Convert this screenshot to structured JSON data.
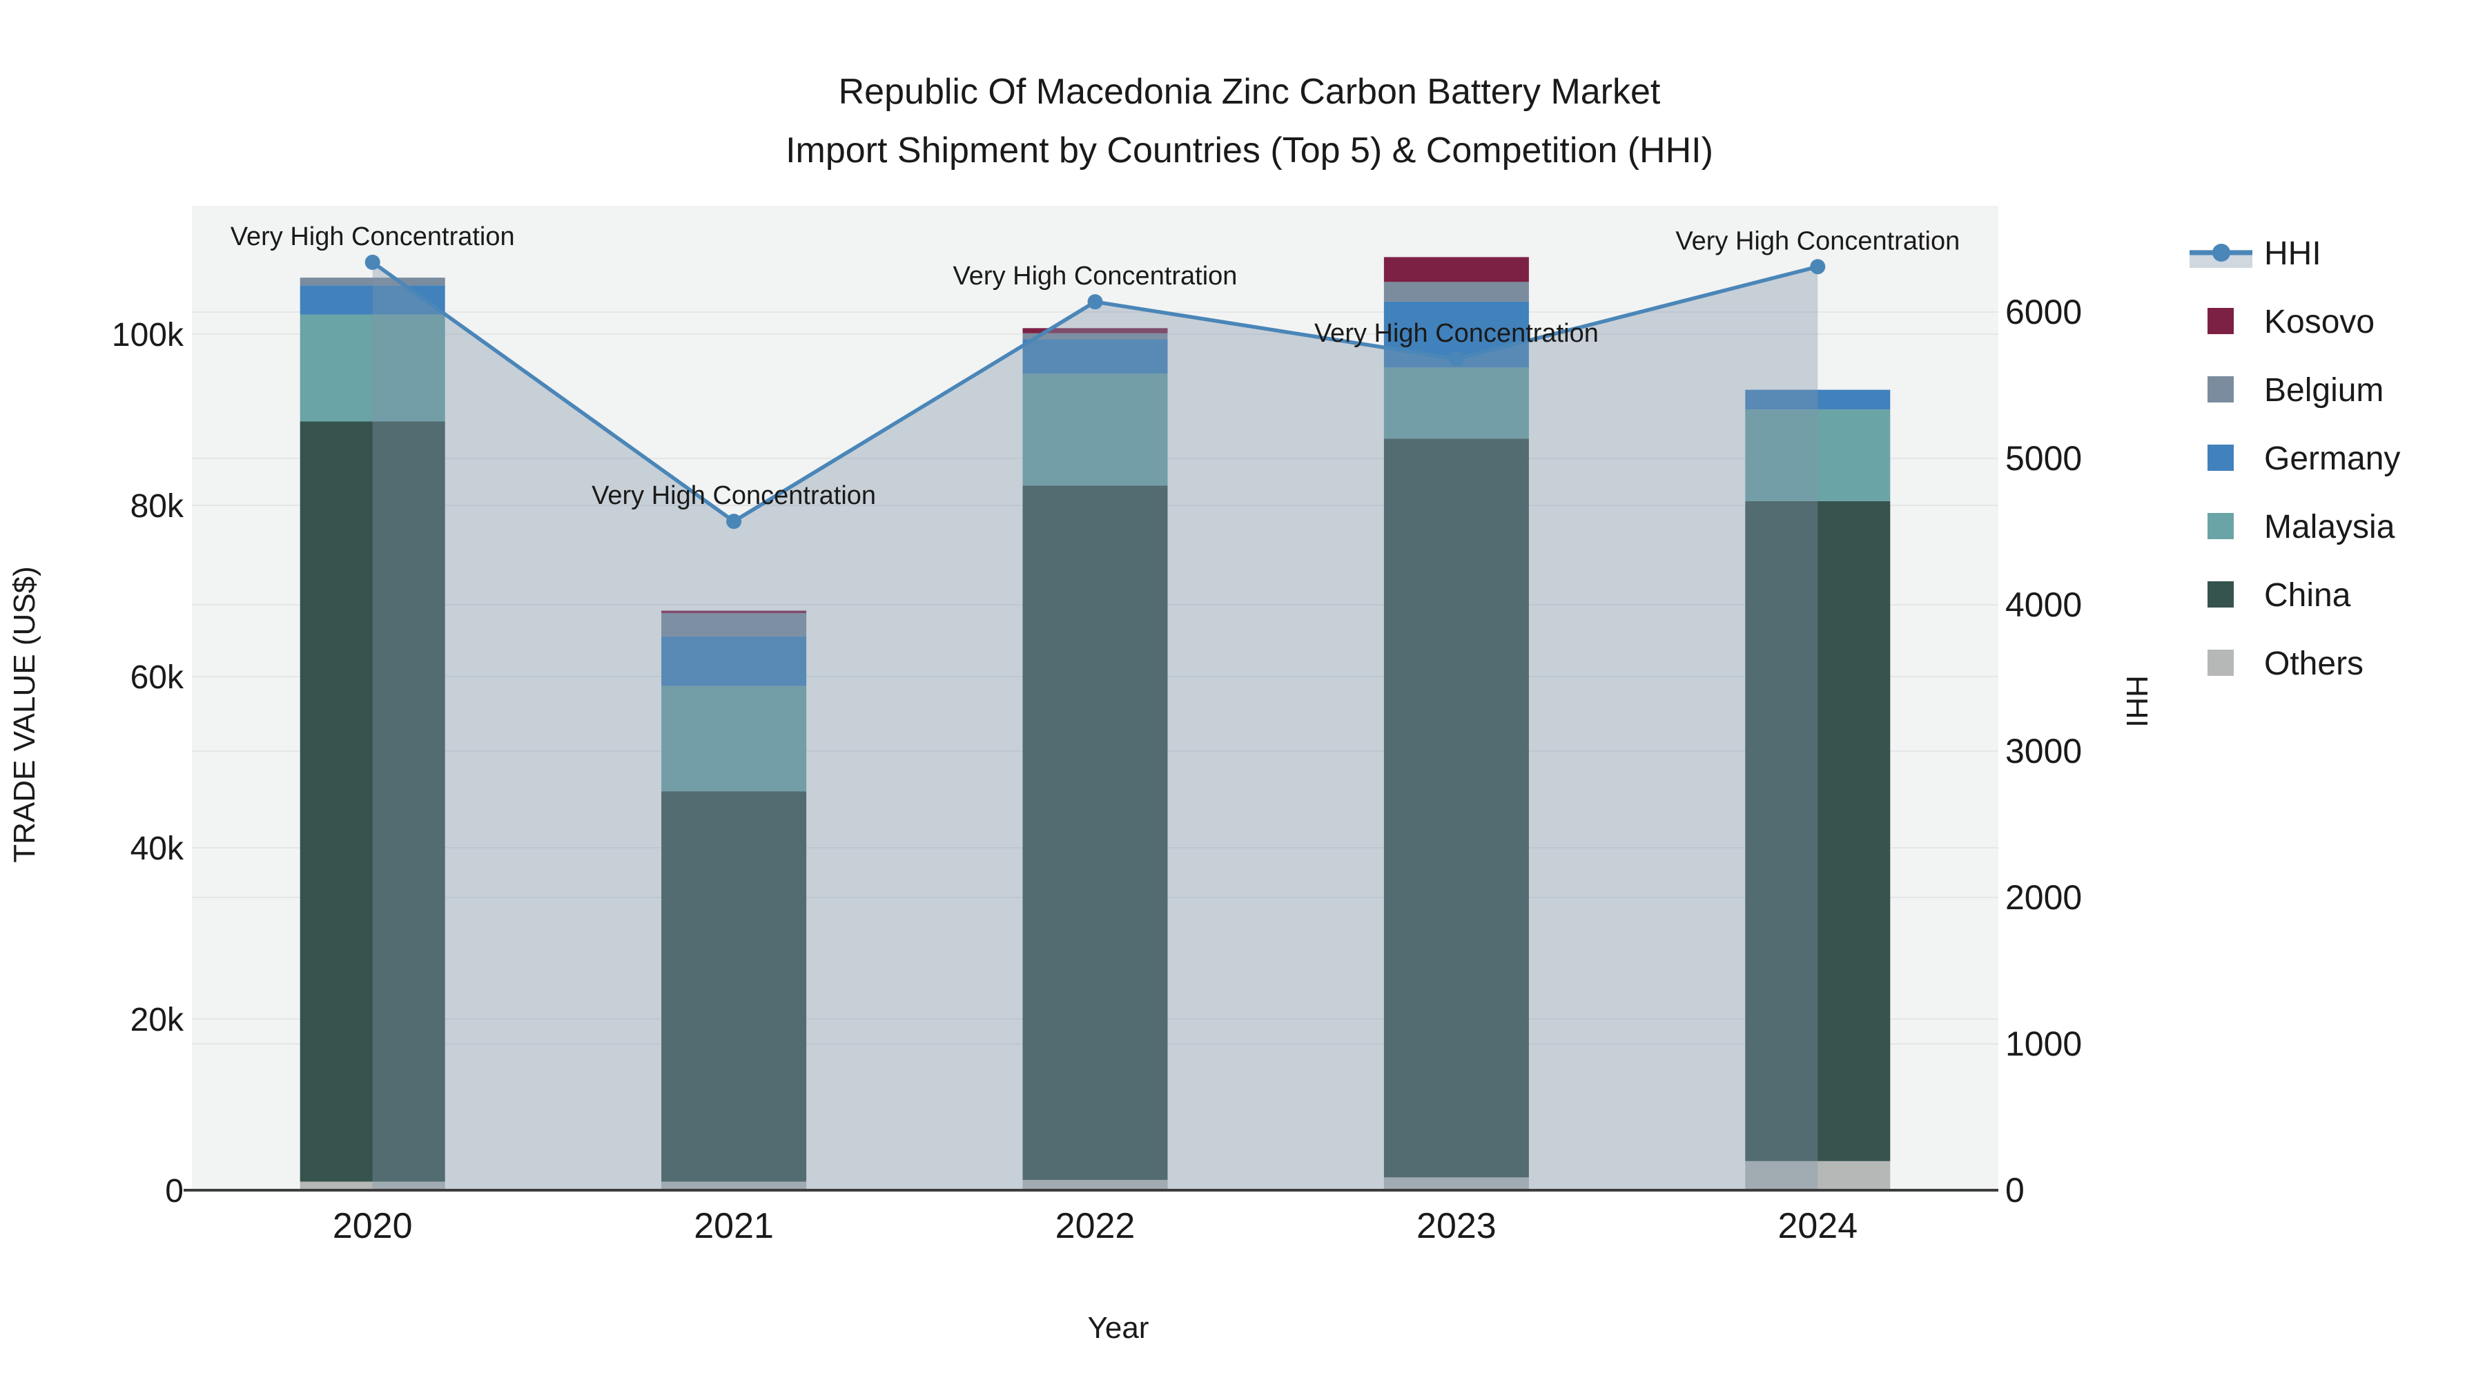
{
  "title": {
    "line1": "Republic Of Macedonia Zinc Carbon Battery Market",
    "line2": "Import Shipment by Countries (Top 5) & Competition (HHI)"
  },
  "axes": {
    "y_left": {
      "title": "TRADE VALUE (US$)",
      "ticks": [
        "0",
        "20k",
        "40k",
        "60k",
        "80k",
        "100k"
      ],
      "tick_values": [
        0,
        20000,
        40000,
        60000,
        80000,
        100000
      ],
      "max": 115000
    },
    "y_right": {
      "title": "HHI",
      "ticks": [
        "0",
        "1000",
        "2000",
        "3000",
        "4000",
        "5000",
        "6000"
      ],
      "tick_values": [
        0,
        1000,
        2000,
        3000,
        4000,
        5000,
        6000
      ],
      "max": 6730
    },
    "x": {
      "title": "Year"
    }
  },
  "annotations": {
    "label": "Very High Concentration",
    "applies_to": [
      "2020",
      "2021",
      "2022",
      "2023",
      "2024"
    ]
  },
  "legend": [
    {
      "id": "hhi",
      "label": "HHI",
      "color": "#4a86b8",
      "swatch": "line"
    },
    {
      "id": "kosovo",
      "label": "Kosovo",
      "color": "#7c2144",
      "swatch": "square"
    },
    {
      "id": "belgium",
      "label": "Belgium",
      "color": "#7b8c9e",
      "swatch": "square"
    },
    {
      "id": "germany",
      "label": "Germany",
      "color": "#4181bc",
      "swatch": "square"
    },
    {
      "id": "malaysia",
      "label": "Malaysia",
      "color": "#6ba4a6",
      "swatch": "square"
    },
    {
      "id": "china",
      "label": "China",
      "color": "#36534e",
      "swatch": "square"
    },
    {
      "id": "others",
      "label": "Others",
      "color": "#b5b8b7",
      "swatch": "square"
    }
  ],
  "chart_data": {
    "type": "combo_stacked_bar_line",
    "title": "Republic Of Macedonia Zinc Carbon Battery Market — Import Shipment by Countries (Top 5) & Competition (HHI)",
    "xlabel": "Year",
    "ylabel_left": "TRADE VALUE (US$)",
    "ylabel_right": "HHI",
    "ylim_left": [
      0,
      115000
    ],
    "ylim_right": [
      0,
      6730
    ],
    "grid": true,
    "legend_position": "right",
    "categories": [
      "2020",
      "2021",
      "2022",
      "2023",
      "2024"
    ],
    "series": [
      {
        "name": "Others",
        "color": "#b5b8b7",
        "values": [
          1000,
          1000,
          1200,
          1500,
          3400
        ]
      },
      {
        "name": "China",
        "color": "#36534e",
        "values": [
          88800,
          45600,
          81100,
          86300,
          77100
        ]
      },
      {
        "name": "Malaysia",
        "color": "#6ba4a6",
        "values": [
          12500,
          12300,
          13100,
          8300,
          10700
        ]
      },
      {
        "name": "Germany",
        "color": "#4181bc",
        "values": [
          3400,
          5800,
          4000,
          7700,
          2300
        ]
      },
      {
        "name": "Belgium",
        "color": "#7b8c9e",
        "values": [
          900,
          2700,
          700,
          2300,
          0
        ]
      },
      {
        "name": "Kosovo",
        "color": "#7c2144",
        "values": [
          0,
          300,
          600,
          2900,
          0
        ]
      }
    ],
    "bar_totals": [
      106600,
      67700,
      100700,
      109000,
      93500
    ],
    "line_series": {
      "name": "HHI",
      "axis": "right",
      "color": "#4a86b8",
      "area_fill": "rgba(130,150,170,0.38)",
      "values": [
        6340,
        4570,
        6070,
        5680,
        6310
      ]
    },
    "colors": {
      "plot_bg": "#f2f3f3",
      "grid": "#e4e6e7",
      "axis_line": "#3d3d3d",
      "annotation_text": "#000000"
    }
  }
}
